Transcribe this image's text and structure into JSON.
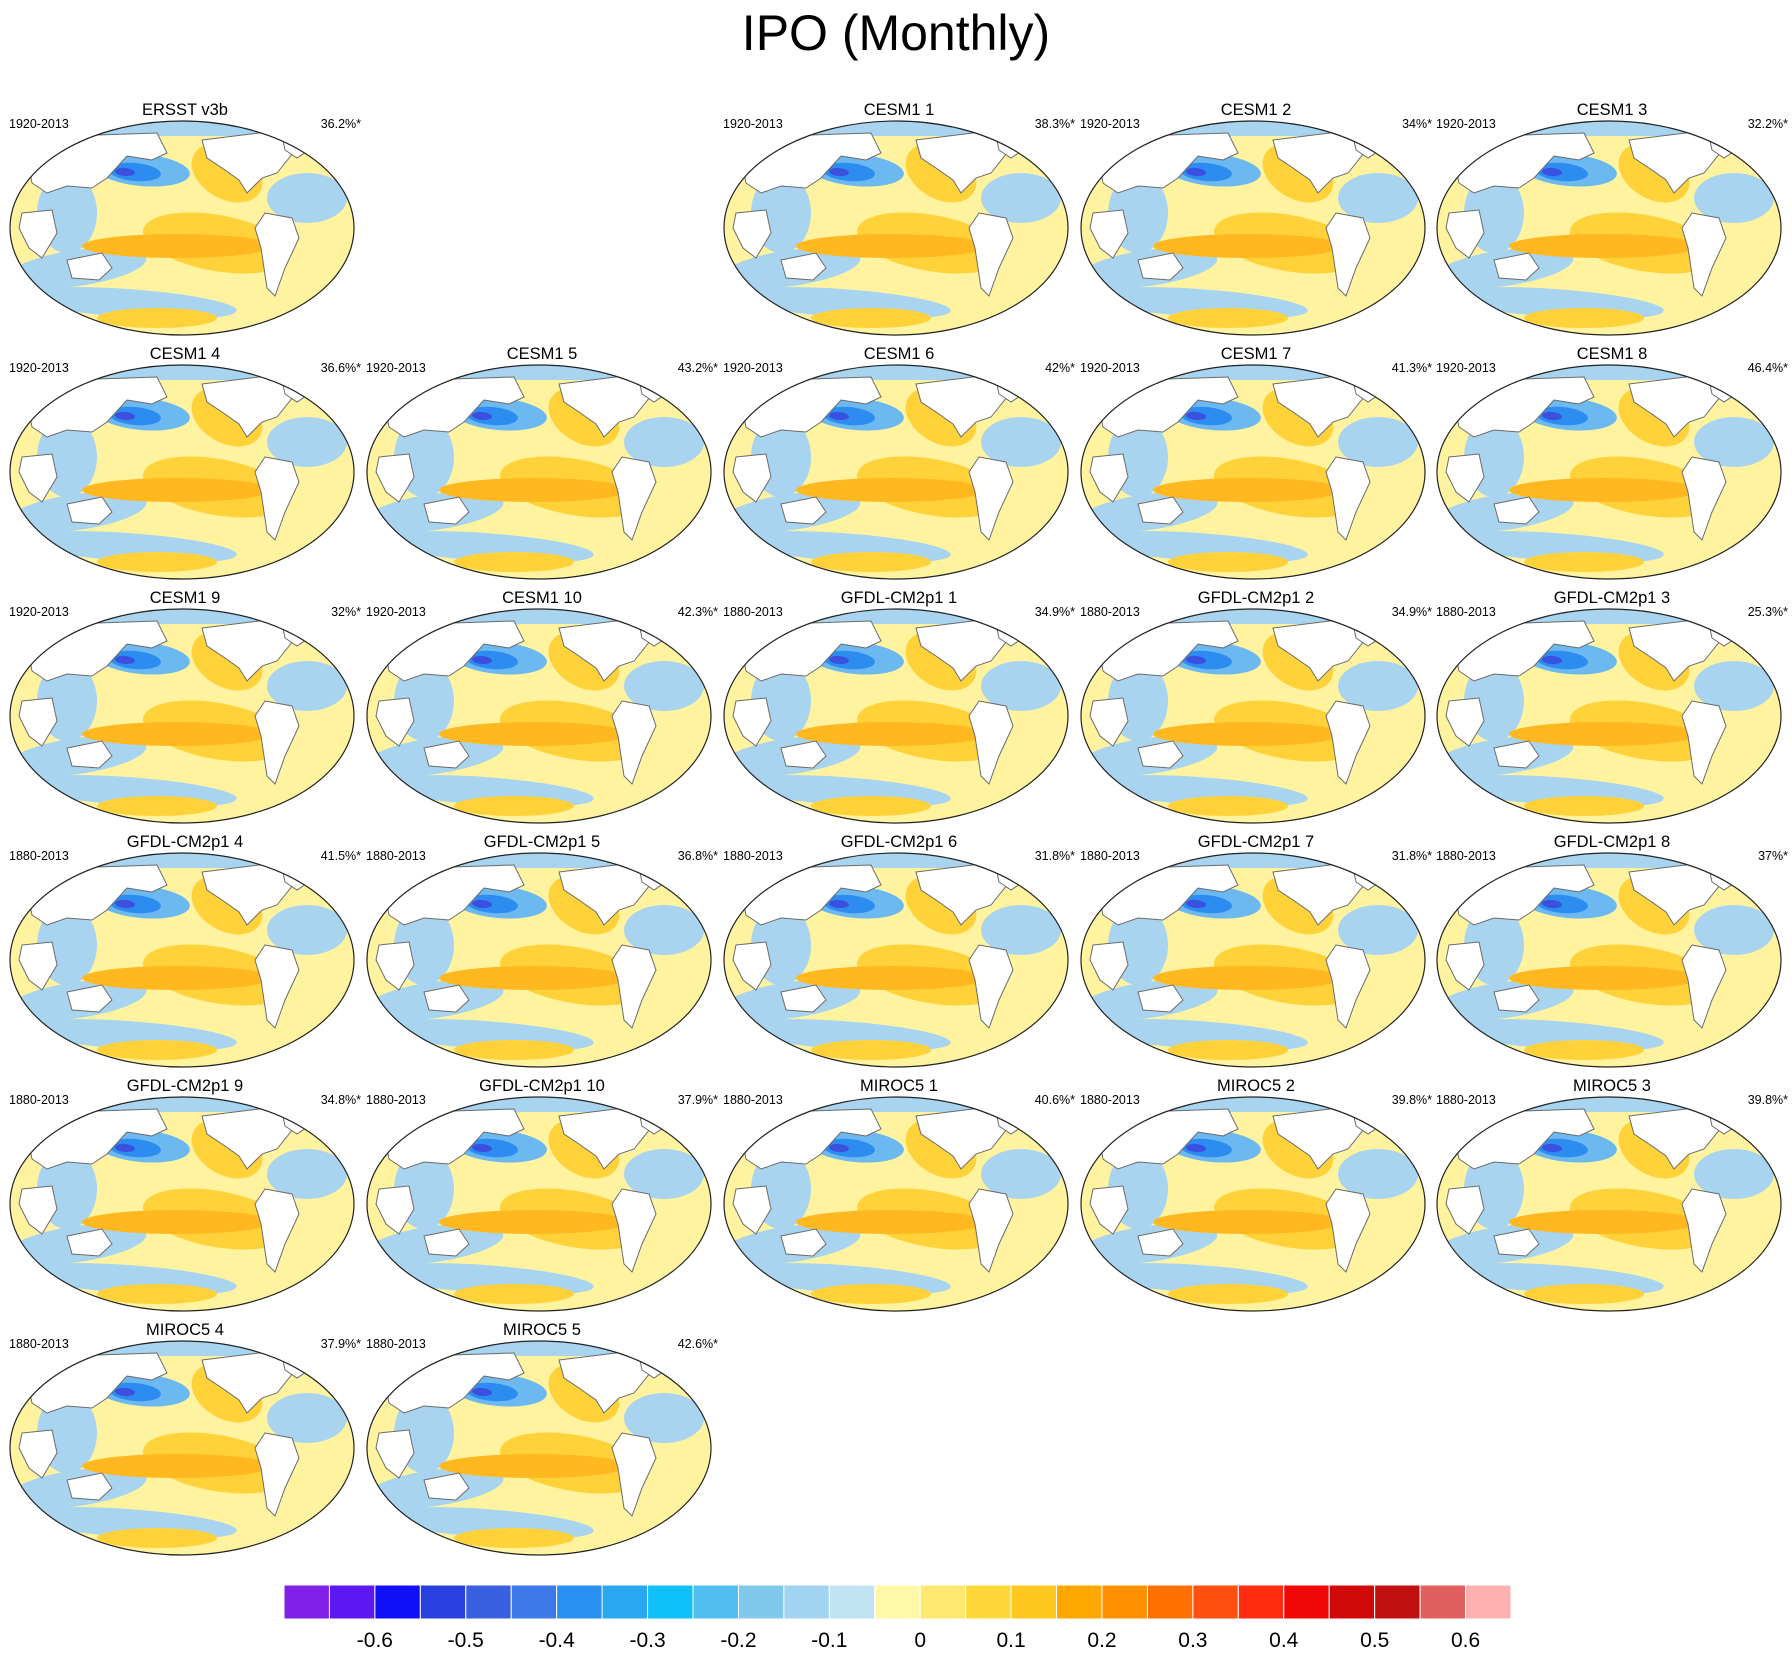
{
  "title": "IPO (Monthly)",
  "panels": [
    {
      "name": "ERSST v3b",
      "period": "1920-2013",
      "pct": "36.2%*"
    },
    {
      "name": "CESM1 1",
      "period": "1920-2013",
      "pct": "38.3%*"
    },
    {
      "name": "CESM1 2",
      "period": "1920-2013",
      "pct": "34%*"
    },
    {
      "name": "CESM1 3",
      "period": "1920-2013",
      "pct": "32.2%*"
    },
    {
      "name": "CESM1 4",
      "period": "1920-2013",
      "pct": "36.6%*"
    },
    {
      "name": "CESM1 5",
      "period": "1920-2013",
      "pct": "43.2%*"
    },
    {
      "name": "CESM1 6",
      "period": "1920-2013",
      "pct": "42%*"
    },
    {
      "name": "CESM1 7",
      "period": "1920-2013",
      "pct": "41.3%*"
    },
    {
      "name": "CESM1 8",
      "period": "1920-2013",
      "pct": "46.4%*"
    },
    {
      "name": "CESM1 9",
      "period": "1920-2013",
      "pct": "32%*"
    },
    {
      "name": "CESM1 10",
      "period": "1920-2013",
      "pct": "42.3%*"
    },
    {
      "name": "GFDL-CM2p1 1",
      "period": "1880-2013",
      "pct": "34.9%*"
    },
    {
      "name": "GFDL-CM2p1 2",
      "period": "1880-2013",
      "pct": "34.9%*"
    },
    {
      "name": "GFDL-CM2p1 3",
      "period": "1880-2013",
      "pct": "25.3%*"
    },
    {
      "name": "GFDL-CM2p1 4",
      "period": "1880-2013",
      "pct": "41.5%*"
    },
    {
      "name": "GFDL-CM2p1 5",
      "period": "1880-2013",
      "pct": "36.8%*"
    },
    {
      "name": "GFDL-CM2p1 6",
      "period": "1880-2013",
      "pct": "31.8%*"
    },
    {
      "name": "GFDL-CM2p1 7",
      "period": "1880-2013",
      "pct": "31.8%*"
    },
    {
      "name": "GFDL-CM2p1 8",
      "period": "1880-2013",
      "pct": "37%*"
    },
    {
      "name": "GFDL-CM2p1 9",
      "period": "1880-2013",
      "pct": "34.8%*"
    },
    {
      "name": "GFDL-CM2p1 10",
      "period": "1880-2013",
      "pct": "37.9%*"
    },
    {
      "name": "MIROC5 1",
      "period": "1880-2013",
      "pct": "40.6%*"
    },
    {
      "name": "MIROC5 2",
      "period": "1880-2013",
      "pct": "39.8%*"
    },
    {
      "name": "MIROC5 3",
      "period": "1880-2013",
      "pct": "39.8%*"
    },
    {
      "name": "MIROC5 4",
      "period": "1880-2013",
      "pct": "37.9%*"
    },
    {
      "name": "MIROC5 5",
      "period": "1880-2013",
      "pct": "42.6%*"
    }
  ],
  "colorbar": {
    "colors": [
      "#8020e8",
      "#5c18f0",
      "#1010f8",
      "#2840e0",
      "#3860e0",
      "#3c78e8",
      "#2890f0",
      "#28a8f0",
      "#10c0f8",
      "#50bef0",
      "#80c8ec",
      "#a0d4f0",
      "#c0e4f4",
      "#fff8a8",
      "#ffe870",
      "#ffd838",
      "#ffc820",
      "#ffa800",
      "#ff9000",
      "#ff7000",
      "#ff5010",
      "#ff2c10",
      "#f00808",
      "#d00808",
      "#c01010",
      "#e06060",
      "#ffb0b0"
    ],
    "tick_labels": [
      "-0.6",
      "-0.5",
      "-0.4",
      "-0.3",
      "-0.2",
      "-0.1",
      "0",
      "0.1",
      "0.2",
      "0.3",
      "0.4",
      "0.5",
      "0.6"
    ]
  }
}
